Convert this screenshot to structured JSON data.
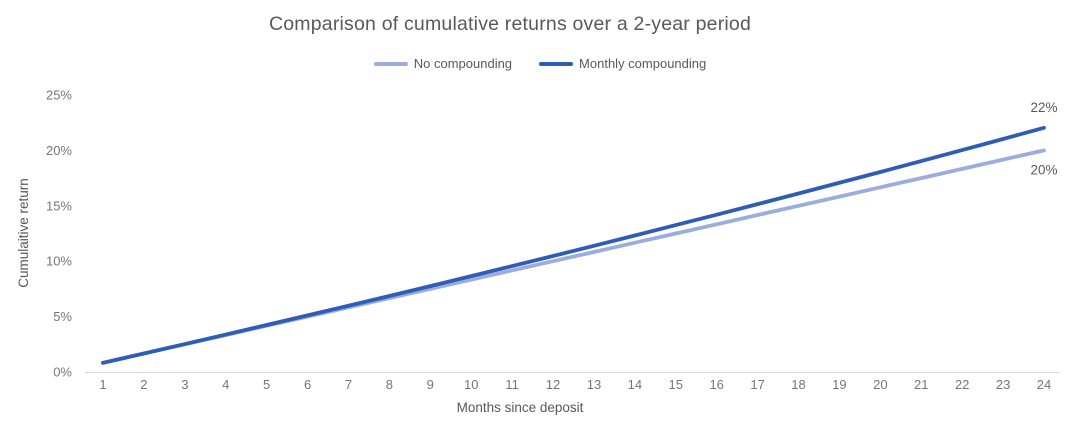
{
  "title": "Comparison of cumulative returns over a 2-year period",
  "colors": {
    "no_compounding": "#9BADDD",
    "monthly_compounding": "#2F5CB5",
    "title_text": "#595959",
    "tick_text": "#757575",
    "axis_line": "#D9D9D9"
  },
  "chart_data": {
    "type": "line",
    "title": "Comparison of cumulative returns over a 2-year period",
    "xlabel": "Months since deposit",
    "ylabel": "Cumulaitive return",
    "x": [
      1,
      2,
      3,
      4,
      5,
      6,
      7,
      8,
      9,
      10,
      11,
      12,
      13,
      14,
      15,
      16,
      17,
      18,
      19,
      20,
      21,
      22,
      23,
      24
    ],
    "series": [
      {
        "name": "No compounding",
        "color": "#9BADDD",
        "values": [
          0.83,
          1.67,
          2.5,
          3.33,
          4.17,
          5,
          5.83,
          6.67,
          7.5,
          8.33,
          9.17,
          10,
          10.83,
          11.67,
          12.5,
          13.33,
          14.17,
          15,
          15.83,
          16.67,
          17.5,
          18.33,
          19.17,
          20
        ],
        "end_label": "20%",
        "end_label_position": "below"
      },
      {
        "name": "Monthly compounding",
        "color": "#2F5CB5",
        "values": [
          0.83,
          1.67,
          2.52,
          3.38,
          4.24,
          5.11,
          5.98,
          6.86,
          7.75,
          8.65,
          9.56,
          10.47,
          11.39,
          12.32,
          13.26,
          14.2,
          15.15,
          16.11,
          17.08,
          18.05,
          19.04,
          20.03,
          21.03,
          22.04
        ],
        "end_label": "22%",
        "end_label_position": "above"
      }
    ],
    "ylim": [
      0,
      25
    ],
    "y_tick_values": [
      0,
      5,
      10,
      15,
      20,
      25
    ],
    "y_tick_labels": [
      "0%",
      "5%",
      "10%",
      "15%",
      "20%",
      "25%"
    ],
    "grid": false,
    "legend_position": "top"
  }
}
